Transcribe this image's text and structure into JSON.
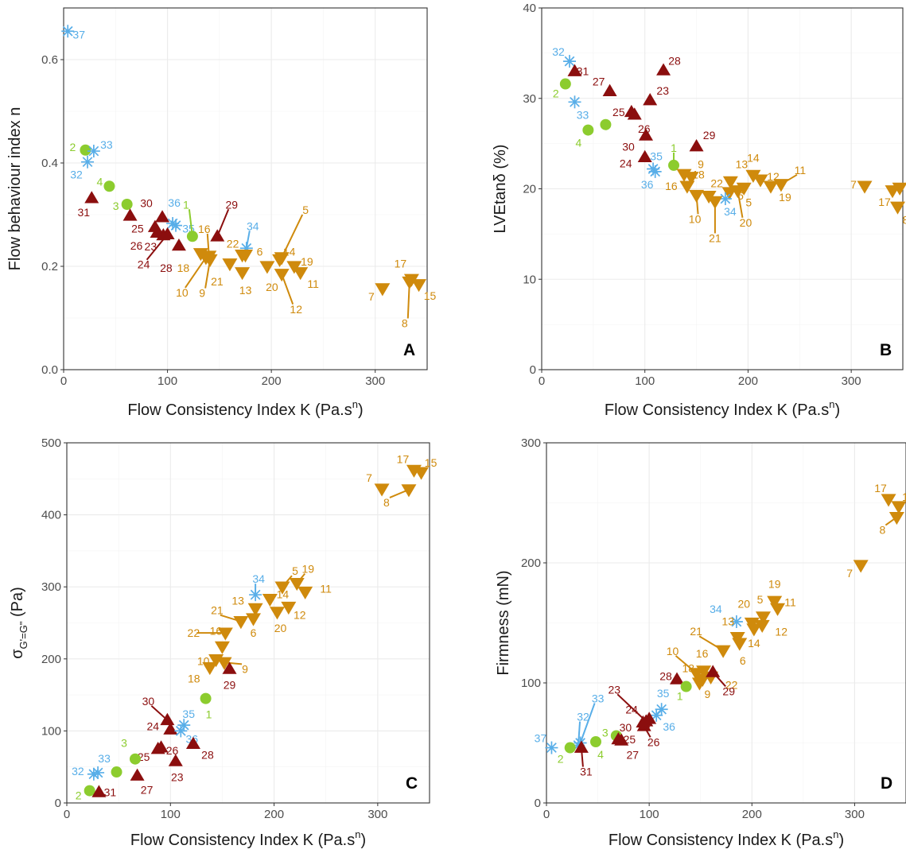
{
  "colors": {
    "green": "#8ccc2e",
    "blue": "#58aee8",
    "darkred": "#8b0e0e",
    "orange": "#cf8a0c"
  },
  "marker_legend": {
    "green": "circle",
    "blue": "asterisk",
    "darkred": "triangle-up",
    "orange": "triangle-down"
  },
  "chart_data": [
    {
      "panel": "A",
      "type": "scatter",
      "xlabel": "Flow Consistency Index K (Pa.s",
      "xlabel_sup": "n",
      "xlabel_close": ")",
      "ylabel": "Flow behaviour index n",
      "xlim": [
        0,
        350
      ],
      "ylim": [
        0,
        0.7
      ],
      "xticks": [
        "0",
        "100",
        "200",
        "300"
      ],
      "yticks": [
        "0.0",
        "0.2",
        "0.4",
        "0.6"
      ],
      "xtick_values": [
        0,
        100,
        200,
        300
      ],
      "ytick_values": [
        0,
        0.2,
        0.4,
        0.6
      ],
      "points": [
        {
          "id": "37",
          "group": "blue",
          "x": 4,
          "y": 0.655
        },
        {
          "id": "2",
          "group": "green",
          "x": 21,
          "y": 0.425
        },
        {
          "id": "33",
          "group": "blue",
          "x": 29,
          "y": 0.423
        },
        {
          "id": "32",
          "group": "blue",
          "x": 23,
          "y": 0.402
        },
        {
          "id": "4",
          "group": "green",
          "x": 44,
          "y": 0.355
        },
        {
          "id": "31",
          "group": "darkred",
          "x": 27,
          "y": 0.332
        },
        {
          "id": "3",
          "group": "green",
          "x": 61,
          "y": 0.32
        },
        {
          "id": "27",
          "group": "darkred",
          "x": 64,
          "y": 0.298
        },
        {
          "id": "30",
          "group": "darkred",
          "x": 95,
          "y": 0.295
        },
        {
          "id": "36",
          "group": "blue",
          "x": 105,
          "y": 0.283
        },
        {
          "id": "35",
          "group": "blue",
          "x": 108,
          "y": 0.279
        },
        {
          "id": "25",
          "group": "darkred",
          "x": 88,
          "y": 0.276
        },
        {
          "id": "26",
          "group": "darkred",
          "x": 90,
          "y": 0.265
        },
        {
          "id": "24",
          "group": "darkred",
          "x": 100,
          "y": 0.262
        },
        {
          "id": "1",
          "group": "green",
          "x": 124,
          "y": 0.258
        },
        {
          "id": "29",
          "group": "darkred",
          "x": 148,
          "y": 0.258
        },
        {
          "id": "23",
          "group": "darkred",
          "x": 96,
          "y": 0.26
        },
        {
          "id": "28",
          "group": "darkred",
          "x": 111,
          "y": 0.24
        },
        {
          "id": "34",
          "group": "blue",
          "x": 176,
          "y": 0.235
        },
        {
          "id": "16",
          "group": "orange",
          "x": 140,
          "y": 0.22
        },
        {
          "id": "18",
          "group": "orange",
          "x": 132,
          "y": 0.225
        },
        {
          "id": "22",
          "group": "orange",
          "x": 172,
          "y": 0.222
        },
        {
          "id": "6",
          "group": "orange",
          "x": 175,
          "y": 0.222
        },
        {
          "id": "14",
          "group": "orange",
          "x": 208,
          "y": 0.213
        },
        {
          "id": "5",
          "group": "orange",
          "x": 210,
          "y": 0.217
        },
        {
          "id": "10",
          "group": "orange",
          "x": 137,
          "y": 0.217
        },
        {
          "id": "9",
          "group": "orange",
          "x": 141,
          "y": 0.213
        },
        {
          "id": "21",
          "group": "orange",
          "x": 160,
          "y": 0.205
        },
        {
          "id": "19",
          "group": "orange",
          "x": 222,
          "y": 0.2
        },
        {
          "id": "20",
          "group": "orange",
          "x": 196,
          "y": 0.2
        },
        {
          "id": "13",
          "group": "orange",
          "x": 172,
          "y": 0.188
        },
        {
          "id": "12",
          "group": "orange",
          "x": 210,
          "y": 0.185
        },
        {
          "id": "11",
          "group": "orange",
          "x": 228,
          "y": 0.188
        },
        {
          "id": "17",
          "group": "orange",
          "x": 335,
          "y": 0.175
        },
        {
          "id": "15",
          "group": "orange",
          "x": 342,
          "y": 0.165
        },
        {
          "id": "7",
          "group": "orange",
          "x": 307,
          "y": 0.157
        },
        {
          "id": "8",
          "group": "orange",
          "x": 333,
          "y": 0.17
        }
      ]
    },
    {
      "panel": "B",
      "type": "scatter",
      "xlabel": "Flow Consistency Index K (Pa.s",
      "xlabel_sup": "n",
      "xlabel_close": ")",
      "ylabel": "LVEtanδ (%)",
      "xlim": [
        0,
        350
      ],
      "ylim": [
        0,
        40
      ],
      "xticks": [
        "0",
        "100",
        "200",
        "300"
      ],
      "yticks": [
        "0",
        "10",
        "20",
        "30",
        "40"
      ],
      "xtick_values": [
        0,
        100,
        200,
        300
      ],
      "ytick_values": [
        0,
        10,
        20,
        30,
        40
      ],
      "points": [
        {
          "id": "32",
          "group": "blue",
          "x": 27,
          "y": 34.1
        },
        {
          "id": "31",
          "group": "darkred",
          "x": 32,
          "y": 33.0
        },
        {
          "id": "28",
          "group": "darkred",
          "x": 118,
          "y": 33.1
        },
        {
          "id": "2",
          "group": "green",
          "x": 23,
          "y": 31.6
        },
        {
          "id": "27",
          "group": "darkred",
          "x": 66,
          "y": 30.8
        },
        {
          "id": "23",
          "group": "darkred",
          "x": 105,
          "y": 29.8
        },
        {
          "id": "33",
          "group": "blue",
          "x": 32,
          "y": 29.6
        },
        {
          "id": "25",
          "group": "darkred",
          "x": 87,
          "y": 28.5
        },
        {
          "id": "26",
          "group": "darkred",
          "x": 90,
          "y": 28.2
        },
        {
          "id": "3",
          "group": "green",
          "x": 62,
          "y": 27.1
        },
        {
          "id": "4",
          "group": "green",
          "x": 45,
          "y": 26.5
        },
        {
          "id": "30",
          "group": "darkred",
          "x": 101,
          "y": 25.9
        },
        {
          "id": "29",
          "group": "darkred",
          "x": 150,
          "y": 24.7
        },
        {
          "id": "24",
          "group": "darkred",
          "x": 100,
          "y": 23.5
        },
        {
          "id": "1",
          "group": "green",
          "x": 128,
          "y": 22.6
        },
        {
          "id": "35",
          "group": "blue",
          "x": 108,
          "y": 22.2
        },
        {
          "id": "18",
          "group": "orange",
          "x": 138,
          "y": 21.6
        },
        {
          "id": "36",
          "group": "blue",
          "x": 110,
          "y": 21.9
        },
        {
          "id": "9",
          "group": "orange",
          "x": 145,
          "y": 21.3
        },
        {
          "id": "14",
          "group": "orange",
          "x": 205,
          "y": 21.5
        },
        {
          "id": "12",
          "group": "orange",
          "x": 212,
          "y": 21.0
        },
        {
          "id": "13",
          "group": "orange",
          "x": 183,
          "y": 20.8
        },
        {
          "id": "11",
          "group": "orange",
          "x": 232,
          "y": 20.5
        },
        {
          "id": "16",
          "group": "orange",
          "x": 141,
          "y": 20.3
        },
        {
          "id": "7",
          "group": "orange",
          "x": 313,
          "y": 20.3
        },
        {
          "id": "15",
          "group": "orange",
          "x": 347,
          "y": 20.1
        },
        {
          "id": "17",
          "group": "orange",
          "x": 340,
          "y": 19.8
        },
        {
          "id": "5",
          "group": "orange",
          "x": 196,
          "y": 20.1
        },
        {
          "id": "19",
          "group": "orange",
          "x": 222,
          "y": 20.3
        },
        {
          "id": "22",
          "group": "orange",
          "x": 162,
          "y": 19.2
        },
        {
          "id": "6",
          "group": "orange",
          "x": 182,
          "y": 19.6
        },
        {
          "id": "34",
          "group": "blue",
          "x": 178,
          "y": 18.9
        },
        {
          "id": "10",
          "group": "orange",
          "x": 150,
          "y": 19.3
        },
        {
          "id": "20",
          "group": "orange",
          "x": 190,
          "y": 19.8
        },
        {
          "id": "21",
          "group": "orange",
          "x": 168,
          "y": 18.6
        },
        {
          "id": "8",
          "group": "orange",
          "x": 345,
          "y": 18.0
        }
      ]
    },
    {
      "panel": "C",
      "type": "scatter",
      "xlabel": "Flow Consistency Index K (Pa.s",
      "xlabel_sup": "n",
      "xlabel_close": ")",
      "ylabel": "σ",
      "ylabel_sub": "G'=G\"",
      "ylabel_close": " (Pa)",
      "xlim": [
        0,
        350
      ],
      "ylim": [
        0,
        500
      ],
      "xticks": [
        "0",
        "100",
        "200",
        "300"
      ],
      "yticks": [
        "0",
        "100",
        "200",
        "300",
        "400",
        "500"
      ],
      "xtick_values": [
        0,
        100,
        200,
        300
      ],
      "ytick_values": [
        0,
        100,
        200,
        300,
        400,
        500
      ],
      "points": [
        {
          "id": "17",
          "group": "orange",
          "x": 335,
          "y": 462
        },
        {
          "id": "15",
          "group": "orange",
          "x": 342,
          "y": 459
        },
        {
          "id": "7",
          "group": "orange",
          "x": 304,
          "y": 436
        },
        {
          "id": "8",
          "group": "orange",
          "x": 330,
          "y": 435
        },
        {
          "id": "19",
          "group": "orange",
          "x": 222,
          "y": 305
        },
        {
          "id": "5",
          "group": "orange",
          "x": 208,
          "y": 300
        },
        {
          "id": "11",
          "group": "orange",
          "x": 230,
          "y": 293
        },
        {
          "id": "34",
          "group": "blue",
          "x": 182,
          "y": 289
        },
        {
          "id": "14",
          "group": "orange",
          "x": 196,
          "y": 283
        },
        {
          "id": "12",
          "group": "orange",
          "x": 214,
          "y": 272
        },
        {
          "id": "13",
          "group": "orange",
          "x": 182,
          "y": 270
        },
        {
          "id": "20",
          "group": "orange",
          "x": 203,
          "y": 265
        },
        {
          "id": "6",
          "group": "orange",
          "x": 180,
          "y": 256
        },
        {
          "id": "21",
          "group": "orange",
          "x": 168,
          "y": 252
        },
        {
          "id": "22",
          "group": "orange",
          "x": 153,
          "y": 236
        },
        {
          "id": "16",
          "group": "orange",
          "x": 150,
          "y": 217
        },
        {
          "id": "10",
          "group": "orange",
          "x": 144,
          "y": 199
        },
        {
          "id": "9",
          "group": "orange",
          "x": 152,
          "y": 195
        },
        {
          "id": "18",
          "group": "orange",
          "x": 138,
          "y": 188
        },
        {
          "id": "29",
          "group": "darkred",
          "x": 157,
          "y": 186
        },
        {
          "id": "1",
          "group": "green",
          "x": 134,
          "y": 145
        },
        {
          "id": "30",
          "group": "darkred",
          "x": 97,
          "y": 115
        },
        {
          "id": "35",
          "group": "blue",
          "x": 113,
          "y": 108
        },
        {
          "id": "24",
          "group": "darkred",
          "x": 100,
          "y": 102
        },
        {
          "id": "36",
          "group": "blue",
          "x": 110,
          "y": 100
        },
        {
          "id": "28",
          "group": "darkred",
          "x": 122,
          "y": 82
        },
        {
          "id": "26",
          "group": "darkred",
          "x": 91,
          "y": 77
        },
        {
          "id": "25",
          "group": "darkred",
          "x": 88,
          "y": 75
        },
        {
          "id": "3",
          "group": "green",
          "x": 66,
          "y": 61
        },
        {
          "id": "23",
          "group": "darkred",
          "x": 105,
          "y": 58
        },
        {
          "id": "4",
          "group": "green",
          "x": 48,
          "y": 43
        },
        {
          "id": "33",
          "group": "blue",
          "x": 30,
          "y": 42
        },
        {
          "id": "32",
          "group": "blue",
          "x": 26,
          "y": 40
        },
        {
          "id": "27",
          "group": "darkred",
          "x": 68,
          "y": 38
        },
        {
          "id": "2",
          "group": "green",
          "x": 22,
          "y": 17
        },
        {
          "id": "31",
          "group": "darkred",
          "x": 31,
          "y": 15
        }
      ]
    },
    {
      "panel": "D",
      "type": "scatter",
      "xlabel": "Flow Consistency Index K (Pa.s",
      "xlabel_sup": "n",
      "xlabel_close": ")",
      "ylabel": "Firmness (mN)",
      "xlim": [
        0,
        350
      ],
      "ylim": [
        0,
        300
      ],
      "xticks": [
        "0",
        "100",
        "200",
        "300"
      ],
      "yticks": [
        "0",
        "100",
        "200",
        "300"
      ],
      "xtick_values": [
        0,
        100,
        200,
        300
      ],
      "ytick_values": [
        0,
        100,
        200,
        300
      ],
      "points": [
        {
          "id": "17",
          "group": "orange",
          "x": 333,
          "y": 253
        },
        {
          "id": "15",
          "group": "orange",
          "x": 343,
          "y": 247
        },
        {
          "id": "8",
          "group": "orange",
          "x": 341,
          "y": 238
        },
        {
          "id": "7",
          "group": "orange",
          "x": 306,
          "y": 198
        },
        {
          "id": "19",
          "group": "orange",
          "x": 222,
          "y": 168
        },
        {
          "id": "11",
          "group": "orange",
          "x": 225,
          "y": 162
        },
        {
          "id": "5",
          "group": "orange",
          "x": 211,
          "y": 155
        },
        {
          "id": "20",
          "group": "orange",
          "x": 200,
          "y": 150
        },
        {
          "id": "34",
          "group": "blue",
          "x": 185,
          "y": 151
        },
        {
          "id": "12",
          "group": "orange",
          "x": 210,
          "y": 148
        },
        {
          "id": "14",
          "group": "orange",
          "x": 202,
          "y": 145
        },
        {
          "id": "13",
          "group": "orange",
          "x": 186,
          "y": 138
        },
        {
          "id": "6",
          "group": "orange",
          "x": 188,
          "y": 133
        },
        {
          "id": "21",
          "group": "orange",
          "x": 172,
          "y": 127
        },
        {
          "id": "16",
          "group": "orange",
          "x": 153,
          "y": 110
        },
        {
          "id": "22",
          "group": "orange",
          "x": 160,
          "y": 105
        },
        {
          "id": "10",
          "group": "orange",
          "x": 146,
          "y": 108
        },
        {
          "id": "18",
          "group": "orange",
          "x": 152,
          "y": 103
        },
        {
          "id": "28",
          "group": "darkred",
          "x": 127,
          "y": 103
        },
        {
          "id": "29",
          "group": "darkred",
          "x": 162,
          "y": 109
        },
        {
          "id": "9",
          "group": "orange",
          "x": 149,
          "y": 100
        },
        {
          "id": "1",
          "group": "green",
          "x": 136,
          "y": 97
        },
        {
          "id": "35",
          "group": "blue",
          "x": 112,
          "y": 78
        },
        {
          "id": "36",
          "group": "blue",
          "x": 107,
          "y": 73
        },
        {
          "id": "24",
          "group": "darkred",
          "x": 100,
          "y": 70
        },
        {
          "id": "23",
          "group": "darkred",
          "x": 97,
          "y": 68
        },
        {
          "id": "30",
          "group": "darkred",
          "x": 94,
          "y": 67
        },
        {
          "id": "26",
          "group": "darkred",
          "x": 95,
          "y": 64
        },
        {
          "id": "3",
          "group": "green",
          "x": 68,
          "y": 56
        },
        {
          "id": "25",
          "group": "darkred",
          "x": 70,
          "y": 53
        },
        {
          "id": "4",
          "group": "green",
          "x": 48,
          "y": 51
        },
        {
          "id": "33",
          "group": "blue",
          "x": 33,
          "y": 50
        },
        {
          "id": "32",
          "group": "blue",
          "x": 31,
          "y": 48
        },
        {
          "id": "31",
          "group": "darkred",
          "x": 34,
          "y": 46
        },
        {
          "id": "2",
          "group": "green",
          "x": 23,
          "y": 46
        },
        {
          "id": "37",
          "group": "blue",
          "x": 5,
          "y": 46
        },
        {
          "id": "27",
          "group": "darkred",
          "x": 73,
          "y": 52
        }
      ]
    }
  ]
}
